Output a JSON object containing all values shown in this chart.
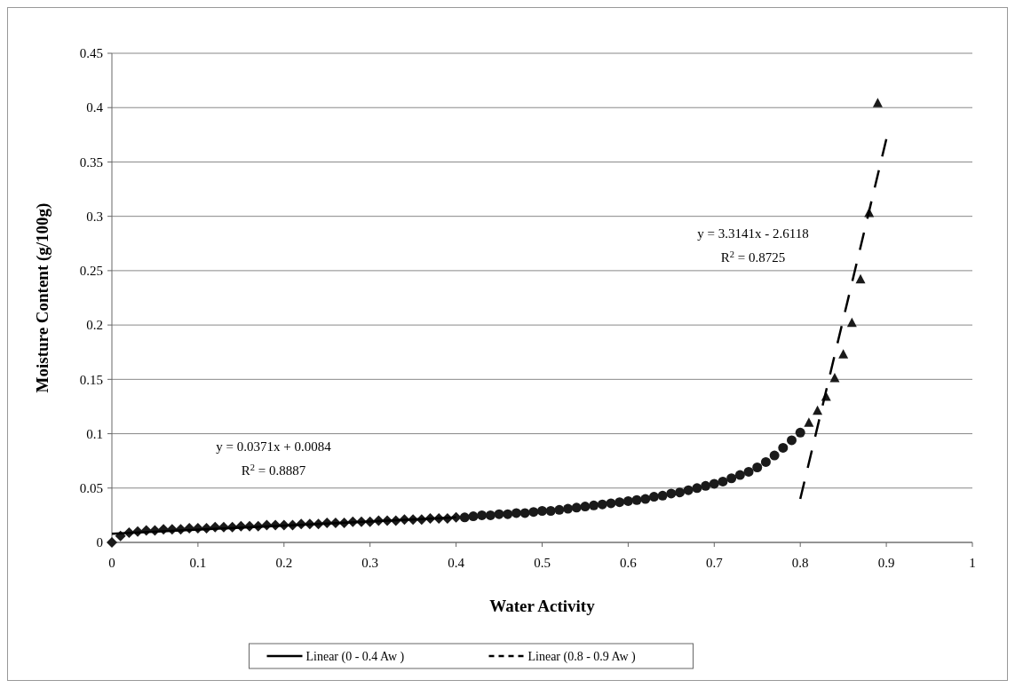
{
  "chart_data": {
    "type": "scatter",
    "xlabel": "Water Activity",
    "ylabel": "Moisture Content (g/100g)",
    "xlim": [
      0,
      1
    ],
    "xticks": [
      0,
      0.1,
      0.2,
      0.3,
      0.4,
      0.5,
      0.6,
      0.7,
      0.8,
      0.9,
      1
    ],
    "ylim": [
      0,
      0.45
    ],
    "yticks": [
      0,
      0.05,
      0.1,
      0.15,
      0.2,
      0.25,
      0.3,
      0.35,
      0.4,
      0.45
    ],
    "grid": "y",
    "legend": "bottom",
    "annotations": [
      "y = 0.0371x + 0.0084",
      "R$^{2}$ = 0.8887",
      "y = 3.3141x - 2.6118",
      "R$^{2}$ = 0.8725"
    ],
    "series": [
      {
        "marker": "diamond",
        "color": "#1a1a1a",
        "x": [
          0,
          0.01,
          0.02,
          0.03,
          0.04,
          0.05,
          0.06,
          0.07,
          0.08,
          0.09,
          0.1,
          0.11,
          0.12,
          0.13,
          0.14,
          0.15,
          0.16,
          0.17,
          0.18,
          0.19,
          0.2,
          0.21,
          0.22,
          0.23,
          0.24,
          0.25,
          0.26,
          0.27,
          0.28,
          0.29,
          0.3,
          0.31,
          0.32,
          0.33,
          0.34,
          0.35,
          0.36,
          0.37,
          0.38,
          0.39,
          0.4
        ],
        "values": [
          0,
          0.006,
          0.009,
          0.01,
          0.011,
          0.011,
          0.012,
          0.012,
          0.012,
          0.013,
          0.013,
          0.013,
          0.014,
          0.014,
          0.014,
          0.015,
          0.015,
          0.015,
          0.016,
          0.016,
          0.016,
          0.016,
          0.017,
          0.017,
          0.017,
          0.018,
          0.018,
          0.018,
          0.019,
          0.019,
          0.019,
          0.02,
          0.02,
          0.02,
          0.021,
          0.021,
          0.021,
          0.022,
          0.022,
          0.022,
          0.023
        ]
      },
      {
        "marker": "circle",
        "color": "#1a1a1a",
        "x": [
          0.41,
          0.42,
          0.43,
          0.44,
          0.45,
          0.46,
          0.47,
          0.48,
          0.49,
          0.5,
          0.51,
          0.52,
          0.53,
          0.54,
          0.55,
          0.56,
          0.57,
          0.58,
          0.59,
          0.6,
          0.61,
          0.62,
          0.63,
          0.64,
          0.65,
          0.66,
          0.67,
          0.68,
          0.69,
          0.7,
          0.71,
          0.72,
          0.73,
          0.74,
          0.75,
          0.76,
          0.77,
          0.78,
          0.79,
          0.8
        ],
        "values": [
          0.023,
          0.024,
          0.025,
          0.025,
          0.026,
          0.026,
          0.027,
          0.027,
          0.028,
          0.029,
          0.029,
          0.03,
          0.031,
          0.032,
          0.033,
          0.034,
          0.035,
          0.036,
          0.037,
          0.038,
          0.039,
          0.04,
          0.042,
          0.043,
          0.045,
          0.046,
          0.048,
          0.05,
          0.052,
          0.054,
          0.056,
          0.059,
          0.062,
          0.065,
          0.069,
          0.074,
          0.08,
          0.087,
          0.094,
          0.101
        ]
      },
      {
        "marker": "triangle",
        "color": "#1a1a1a",
        "x": [
          0.81,
          0.82,
          0.83,
          0.84,
          0.85,
          0.86,
          0.87,
          0.88,
          0.89
        ],
        "values": [
          0.11,
          0.121,
          0.134,
          0.151,
          0.173,
          0.202,
          0.242,
          0.303,
          0.404
        ]
      },
      {
        "type": "line",
        "name": "Linear (0 - 0.4 Aw )",
        "line_style": "solid",
        "marker": "none",
        "color": "#000000",
        "x": [
          0,
          0.4
        ],
        "values": [
          0.008,
          0.023
        ]
      },
      {
        "type": "line",
        "name": "Linear (0.8 - 0.9 Aw )",
        "line_style": "dashed",
        "marker": "none",
        "color": "#000000",
        "x": [
          0.8,
          0.9
        ],
        "values": [
          0.04,
          0.371
        ]
      }
    ]
  }
}
